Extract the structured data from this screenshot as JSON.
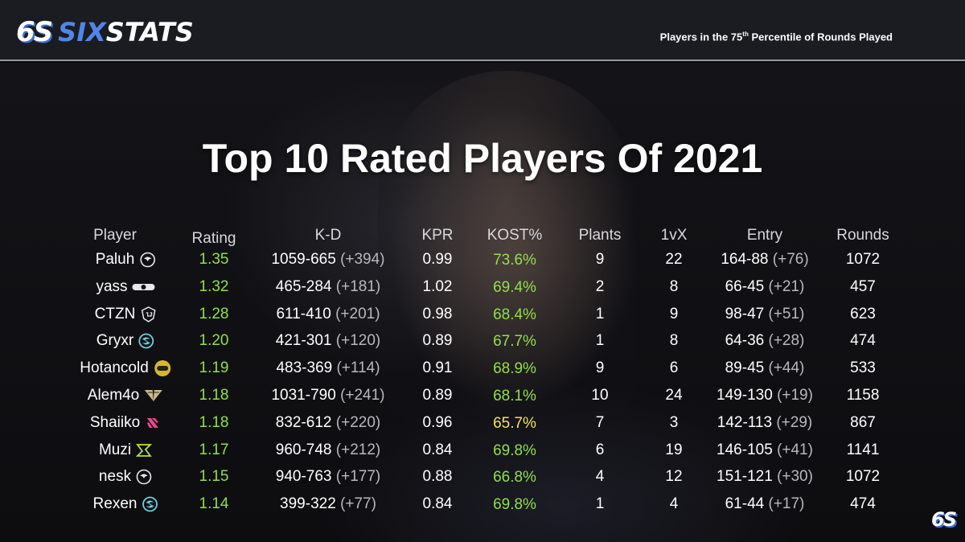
{
  "header": {
    "logo_mark": "6S",
    "logo_text_a": "SIX",
    "logo_text_b": "STATS",
    "subtitle_pre": "Players in the 75",
    "subtitle_sup": "th",
    "subtitle_post": " Percentile of Rounds Played"
  },
  "title": "Top 10 Rated Players Of 2021",
  "columns": [
    "Player",
    "Rating",
    "K-D",
    "KPR",
    "KOST%",
    "Plants",
    "1vX",
    "Entry",
    "Rounds"
  ],
  "rows": [
    {
      "player": "Paluh",
      "team_icon": "team-liquid-icon",
      "rating": "1.35",
      "kd": "1059-665",
      "kd_diff": "(+394)",
      "kpr": "0.99",
      "kost": "73.6%",
      "kost_color": "green",
      "plants": "9",
      "onevx": "22",
      "entry": "164-88",
      "entry_diff": "(+76)",
      "rounds": "1072"
    },
    {
      "player": "yass",
      "team_icon": "team-bar-icon",
      "rating": "1.32",
      "kd": "465-284",
      "kd_diff": "(+181)",
      "kpr": "1.02",
      "kost": "69.4%",
      "kost_color": "green",
      "plants": "2",
      "onevx": "8",
      "entry": "66-45",
      "entry_diff": "(+21)",
      "rounds": "457"
    },
    {
      "player": "CTZN",
      "team_icon": "g2-esports-icon",
      "rating": "1.28",
      "kd": "611-410",
      "kd_diff": "(+201)",
      "kpr": "0.98",
      "kost": "68.4%",
      "kost_color": "green",
      "plants": "1",
      "onevx": "9",
      "entry": "98-47",
      "entry_diff": "(+51)",
      "rounds": "623"
    },
    {
      "player": "Gryxr",
      "team_icon": "team-swirl-icon",
      "rating": "1.20",
      "kd": "421-301",
      "kd_diff": "(+120)",
      "kpr": "0.89",
      "kost": "67.7%",
      "kost_color": "green",
      "plants": "1",
      "onevx": "8",
      "entry": "64-36",
      "entry_diff": "(+28)",
      "rounds": "474"
    },
    {
      "player": "Hotancold",
      "team_icon": "spacestation-icon",
      "rating": "1.19",
      "kd": "483-369",
      "kd_diff": "(+114)",
      "kpr": "0.91",
      "kost": "68.9%",
      "kost_color": "green",
      "plants": "9",
      "onevx": "6",
      "entry": "89-45",
      "entry_diff": "(+44)",
      "rounds": "533"
    },
    {
      "player": "Alem4o",
      "team_icon": "team-wings-icon",
      "rating": "1.18",
      "kd": "1031-790",
      "kd_diff": "(+241)",
      "kpr": "0.89",
      "kost": "68.1%",
      "kost_color": "green",
      "plants": "10",
      "onevx": "24",
      "entry": "149-130",
      "entry_diff": "(+19)",
      "rounds": "1158"
    },
    {
      "player": "Shaiiko",
      "team_icon": "team-bds-icon",
      "rating": "1.18",
      "kd": "832-612",
      "kd_diff": "(+220)",
      "kpr": "0.96",
      "kost": "65.7%",
      "kost_color": "yellow",
      "plants": "7",
      "onevx": "3",
      "entry": "142-113",
      "entry_diff": "(+29)",
      "rounds": "867"
    },
    {
      "player": "Muzi",
      "team_icon": "ninjas-in-pyjamas-icon",
      "rating": "1.17",
      "kd": "960-748",
      "kd_diff": "(+212)",
      "kpr": "0.84",
      "kost": "69.8%",
      "kost_color": "green",
      "plants": "6",
      "onevx": "19",
      "entry": "146-105",
      "entry_diff": "(+41)",
      "rounds": "1141"
    },
    {
      "player": "nesk",
      "team_icon": "team-liquid-icon",
      "rating": "1.15",
      "kd": "940-763",
      "kd_diff": "(+177)",
      "kpr": "0.88",
      "kost": "66.8%",
      "kost_color": "green",
      "plants": "4",
      "onevx": "12",
      "entry": "151-121",
      "entry_diff": "(+30)",
      "rounds": "1072"
    },
    {
      "player": "Rexen",
      "team_icon": "team-swirl-icon",
      "rating": "1.14",
      "kd": "399-322",
      "kd_diff": "(+77)",
      "kpr": "0.84",
      "kost": "69.8%",
      "kost_color": "green",
      "plants": "1",
      "onevx": "4",
      "entry": "61-44",
      "entry_diff": "(+17)",
      "rounds": "474"
    }
  ],
  "colors": {
    "green": "#8fe04a",
    "yellow": "#f2e55a",
    "accent": "#4f86e8"
  },
  "footer": {
    "corner_logo": "6S"
  }
}
